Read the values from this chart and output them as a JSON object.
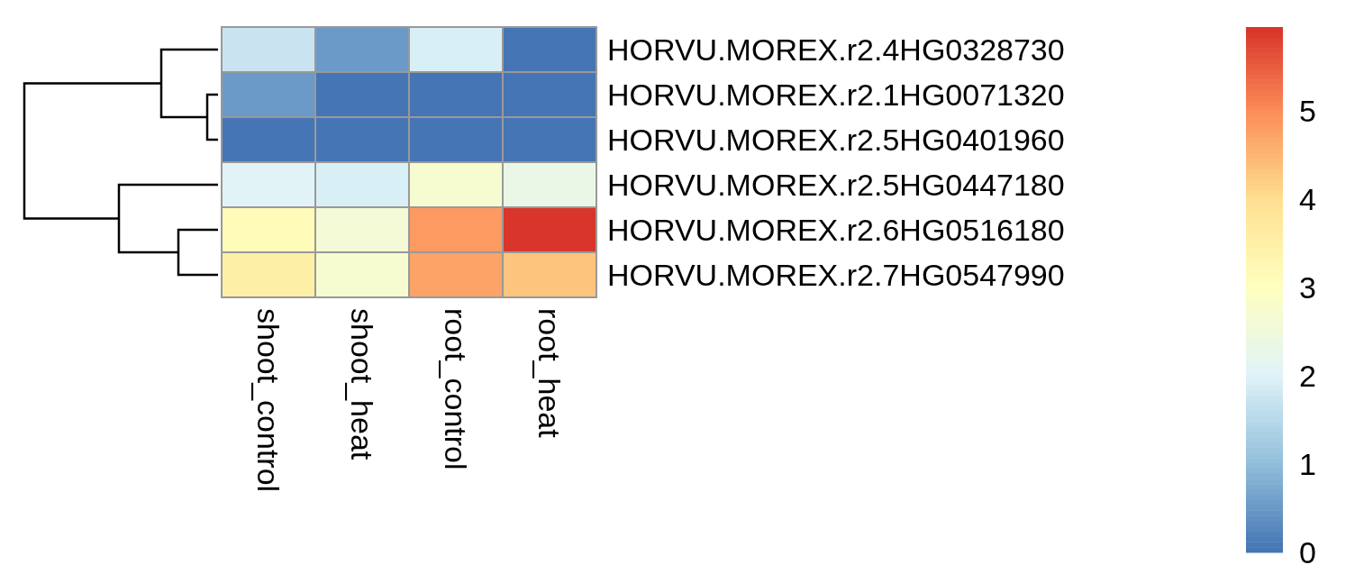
{
  "chart_data": {
    "type": "heatmap",
    "categories": [
      "shoot_control",
      "shoot_heat",
      "root_control",
      "root_heat"
    ],
    "y_categories": [
      "HORVU.MOREX.r2.4HG0328730",
      "HORVU.MOREX.r2.1HG0071320",
      "HORVU.MOREX.r2.5HG0401960",
      "HORVU.MOREX.r2.5HG0447180",
      "HORVU.MOREX.r2.6HG0516180",
      "HORVU.MOREX.r2.7HG0547990"
    ],
    "cells": [
      [
        1.7,
        0.5,
        1.9,
        0
      ],
      [
        0.5,
        0,
        0,
        0
      ],
      [
        0,
        0,
        0,
        0
      ],
      [
        2.0,
        1.9,
        2.7,
        2.3
      ],
      [
        3.1,
        2.6,
        4.8,
        5.9
      ],
      [
        3.5,
        2.7,
        4.7,
        4.3
      ]
    ],
    "clim": [
      0,
      5.95
    ],
    "cticks": [
      0,
      1,
      2,
      3,
      4,
      5
    ]
  }
}
